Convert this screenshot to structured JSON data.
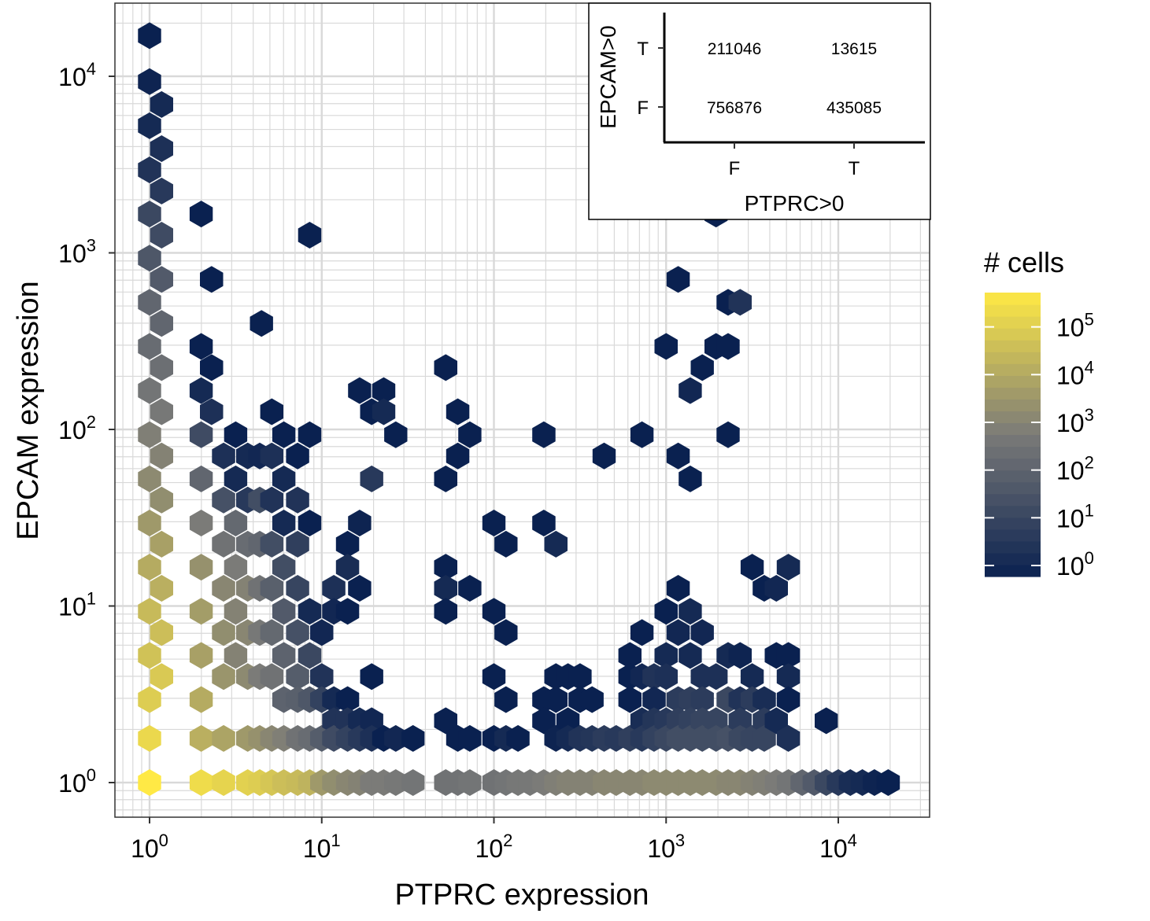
{
  "chart_data": {
    "type": "hexbin",
    "xlabel": "PTPRC expression",
    "ylabel": "EPCAM expression",
    "xscale": "log10",
    "yscale": "log10",
    "xlim": [
      0.8,
      30000
    ],
    "ylim": [
      0.6,
      25000
    ],
    "x_ticks": [
      {
        "base": "10",
        "exp": "0"
      },
      {
        "base": "10",
        "exp": "1"
      },
      {
        "base": "10",
        "exp": "2"
      },
      {
        "base": "10",
        "exp": "3"
      },
      {
        "base": "10",
        "exp": "4"
      }
    ],
    "y_ticks": [
      {
        "base": "10",
        "exp": "0"
      },
      {
        "base": "10",
        "exp": "1"
      },
      {
        "base": "10",
        "exp": "2"
      },
      {
        "base": "10",
        "exp": "3"
      },
      {
        "base": "10",
        "exp": "4"
      }
    ],
    "grid": true,
    "legend": {
      "title": "# cells",
      "scale": "log10",
      "ticks": [
        {
          "base": "10",
          "exp": "0"
        },
        {
          "base": "10",
          "exp": "1"
        },
        {
          "base": "10",
          "exp": "2"
        },
        {
          "base": "10",
          "exp": "3"
        },
        {
          "base": "10",
          "exp": "4"
        },
        {
          "base": "10",
          "exp": "5"
        }
      ],
      "range_log10": [
        0,
        5.95
      ],
      "color_low": "#0a2150",
      "color_mid": "#7a7a78",
      "color_high": "#ffe945",
      "placement": "right"
    },
    "points_log10": [
      [
        0,
        4.23,
        0
      ],
      [
        0,
        3.97,
        0.1
      ],
      [
        0.07,
        3.84,
        0.3
      ],
      [
        0,
        3.72,
        0.3
      ],
      [
        0.07,
        3.59,
        0.5
      ],
      [
        0,
        3.47,
        0.6
      ],
      [
        0.07,
        3.35,
        0.8
      ],
      [
        0,
        3.22,
        1.3
      ],
      [
        0.07,
        3.1,
        1.4
      ],
      [
        0,
        2.97,
        1.8
      ],
      [
        0.07,
        2.85,
        1.9
      ],
      [
        0,
        2.72,
        2.3
      ],
      [
        0.07,
        2.6,
        2.3
      ],
      [
        0,
        2.47,
        2.5
      ],
      [
        0.07,
        2.35,
        2.6
      ],
      [
        0,
        2.22,
        2.8
      ],
      [
        0.07,
        2.1,
        2.9
      ],
      [
        0,
        1.97,
        3.1
      ],
      [
        0.07,
        1.85,
        3.2
      ],
      [
        0,
        1.72,
        3.4
      ],
      [
        0.07,
        1.6,
        3.5
      ],
      [
        0,
        1.47,
        3.8
      ],
      [
        0.07,
        1.35,
        4
      ],
      [
        0,
        1.22,
        4.3
      ],
      [
        0.07,
        1.1,
        4.4
      ],
      [
        0,
        0.97,
        4.7
      ],
      [
        0.07,
        0.85,
        4.8
      ],
      [
        0,
        0.72,
        4.9
      ],
      [
        0.07,
        0.6,
        5.1
      ],
      [
        0,
        0.47,
        5.2
      ],
      [
        0,
        0.25,
        5.5
      ],
      [
        0,
        0,
        5.95
      ],
      [
        0.3,
        3.22,
        0
      ],
      [
        0.36,
        2.85,
        0
      ],
      [
        0.93,
        3.1,
        0
      ],
      [
        0.65,
        2.6,
        0
      ],
      [
        0.3,
        2.47,
        0
      ],
      [
        0.36,
        2.35,
        0
      ],
      [
        0.3,
        2.22,
        0.3
      ],
      [
        0.36,
        2.1,
        0.5
      ],
      [
        0.3,
        1.97,
        1.4
      ],
      [
        0.3,
        1.72,
        2.3
      ],
      [
        0.3,
        1.47,
        3
      ],
      [
        0.3,
        1.22,
        3.6
      ],
      [
        0.3,
        0.97,
        3.9
      ],
      [
        0.3,
        0.72,
        4
      ],
      [
        0.3,
        0.47,
        4.3
      ],
      [
        0.3,
        0.25,
        4.4
      ],
      [
        0.3,
        0,
        5.6
      ],
      [
        0.43,
        1.85,
        0.5
      ],
      [
        0.43,
        1.6,
        1.6
      ],
      [
        0.43,
        1.35,
        2.7
      ],
      [
        0.43,
        1.1,
        3.3
      ],
      [
        0.43,
        0.85,
        3.5
      ],
      [
        0.43,
        0.6,
        3.7
      ],
      [
        0.43,
        0.25,
        4.1
      ],
      [
        0.43,
        0,
        5.4
      ],
      [
        0.5,
        1.97,
        0
      ],
      [
        0.57,
        1.85,
        0.3
      ],
      [
        0.5,
        1.72,
        0.3
      ],
      [
        0.57,
        1.6,
        0.8
      ],
      [
        0.5,
        1.47,
        2.4
      ],
      [
        0.57,
        1.35,
        2.5
      ],
      [
        0.5,
        1.22,
        3
      ],
      [
        0.57,
        1.1,
        3.2
      ],
      [
        0.5,
        0.97,
        3.2
      ],
      [
        0.57,
        0.85,
        3.3
      ],
      [
        0.5,
        0.72,
        3.2
      ],
      [
        0.57,
        0.6,
        3.4
      ],
      [
        0.57,
        0.25,
        3.8
      ],
      [
        0.57,
        0,
        5.3
      ],
      [
        0.64,
        1.85,
        0.2
      ],
      [
        0.64,
        1.6,
        1.5
      ],
      [
        0.64,
        1.35,
        2.3
      ],
      [
        0.64,
        1.1,
        2.7
      ],
      [
        0.64,
        0.85,
        2.9
      ],
      [
        0.64,
        0.6,
        3
      ],
      [
        0.64,
        0.25,
        3.6
      ],
      [
        0.64,
        0
      ],
      [
        0.64,
        0,
        5.2
      ],
      [
        0.71,
        2.1,
        0
      ],
      [
        0.71,
        1.85,
        0.5
      ],
      [
        0.71,
        1.6,
        0.6
      ],
      [
        0.71,
        1.35,
        1.5
      ],
      [
        0.71,
        1.1,
        2.1
      ],
      [
        0.71,
        0.85,
        2.4
      ],
      [
        0.71,
        0.6,
        2.7
      ],
      [
        0.71,
        0.25,
        3.3
      ],
      [
        0.71,
        0,
        5
      ],
      [
        0.78,
        1.97,
        0
      ],
      [
        0.78,
        1.72,
        0.3
      ],
      [
        0.78,
        1.47,
        0.3
      ],
      [
        0.78,
        1.22,
        1.5
      ],
      [
        0.78,
        0.97,
        1.9
      ],
      [
        0.78,
        0.72,
        2.2
      ],
      [
        0.78,
        0.47,
        2.2
      ],
      [
        0.78,
        0.25,
        3.1
      ],
      [
        0.78,
        0,
        4.8
      ],
      [
        0.86,
        1.85,
        0
      ],
      [
        0.86,
        1.6,
        0.6
      ],
      [
        0.86,
        1.35,
        1
      ],
      [
        0.86,
        1.1,
        1.2
      ],
      [
        0.86,
        0.85,
        1.6
      ],
      [
        0.86,
        0.6,
        2
      ],
      [
        0.86,
        0.47,
        2.1
      ],
      [
        0.86,
        0.25,
        2.7
      ],
      [
        0.86,
        0,
        4.7
      ],
      [
        0.93,
        1.97,
        0
      ],
      [
        0.93,
        1.47,
        0
      ],
      [
        0.93,
        0.97,
        0.3
      ],
      [
        0.93,
        0.72,
        1.3
      ],
      [
        0.93,
        0.47,
        1.8
      ],
      [
        0.93,
        0.25,
        2.5
      ],
      [
        0.93,
        0,
        4.5
      ],
      [
        1,
        0.85,
        0.2
      ],
      [
        1,
        0.6,
        0.6
      ],
      [
        1,
        0.47,
        1.1
      ],
      [
        1,
        0.25,
        2
      ],
      [
        1,
        0,
        3.8
      ],
      [
        1.07,
        1.1,
        0.5
      ],
      [
        1.07,
        0.97,
        0.2
      ],
      [
        1.07,
        0.47,
        0.3
      ],
      [
        1.07,
        0.35,
        0.6
      ],
      [
        1.07,
        0.25,
        1.4
      ],
      [
        1.07,
        0,
        3.5
      ],
      [
        1.15,
        1.35,
        0
      ],
      [
        1.15,
        1.22,
        0.4
      ],
      [
        1.15,
        0.97,
        0
      ],
      [
        1.15,
        0.47,
        0
      ],
      [
        1.15,
        0.35,
        0.6
      ],
      [
        1.15,
        0.25,
        1.1
      ],
      [
        1.15,
        0,
        3.3
      ],
      [
        1.22,
        2.22,
        0
      ],
      [
        1.22,
        1.47,
        0.1
      ],
      [
        1.22,
        1.1,
        0
      ],
      [
        1.22,
        0.35,
        0.3
      ],
      [
        1.22,
        0.25,
        0.8
      ],
      [
        1.22,
        0,
        3.2
      ],
      [
        1.29,
        2.1,
        0
      ],
      [
        1.29,
        1.72,
        0.8
      ],
      [
        1.29,
        0.6,
        0
      ],
      [
        1.29,
        0.35,
        0.2
      ],
      [
        1.29,
        0.25,
        0.5
      ],
      [
        1.29,
        0,
        3
      ],
      [
        1.36,
        2.22,
        0
      ],
      [
        1.36,
        2.1,
        0.3
      ],
      [
        1.36,
        0.25,
        0
      ],
      [
        1.36,
        0,
        3
      ],
      [
        1.43,
        1.97,
        0
      ],
      [
        1.43,
        0.25,
        0.2
      ],
      [
        1.43,
        0,
        2.9
      ],
      [
        1.53,
        0.25,
        0
      ],
      [
        1.53,
        0,
        2.8
      ],
      [
        1.72,
        2.35,
        0
      ],
      [
        1.72,
        1.72,
        0
      ],
      [
        1.72,
        1.22,
        0
      ],
      [
        1.72,
        1.1,
        0.3
      ],
      [
        1.72,
        0.97,
        0
      ],
      [
        1.72,
        0.35,
        0
      ],
      [
        1.72,
        0,
        2.7
      ],
      [
        1.79,
        2.1,
        0
      ],
      [
        1.79,
        1.85,
        0
      ],
      [
        1.79,
        0.25,
        0
      ],
      [
        1.79,
        0,
        2.7
      ],
      [
        1.86,
        1.97,
        0
      ],
      [
        1.86,
        1.1,
        0
      ],
      [
        1.86,
        0.25,
        0
      ],
      [
        1.86,
        0,
        2.8
      ],
      [
        2,
        1.47,
        0
      ],
      [
        2,
        0.97,
        0
      ],
      [
        2,
        0.6,
        0
      ],
      [
        2,
        0.25,
        0
      ],
      [
        2,
        0,
        2.7
      ],
      [
        2.07,
        1.35,
        0
      ],
      [
        2.07,
        0.85,
        0
      ],
      [
        2.07,
        0.47,
        0
      ],
      [
        2.07,
        0.25,
        0.3
      ],
      [
        2.07,
        0,
        2.8
      ],
      [
        2.14,
        0.25,
        0
      ],
      [
        2.14,
        0,
        2.9
      ],
      [
        2.21,
        0,
        2.9
      ],
      [
        2.29,
        1.97,
        0
      ],
      [
        2.29,
        1.47,
        0
      ],
      [
        2.29,
        0.47,
        0
      ],
      [
        2.29,
        0.35,
        0
      ],
      [
        2.29,
        0,
        3
      ],
      [
        2.36,
        1.35,
        0.3
      ],
      [
        2.36,
        0.6,
        0
      ],
      [
        2.36,
        0.47,
        0
      ],
      [
        2.36,
        0.25,
        0.1
      ],
      [
        2.36,
        0,
        3.1
      ],
      [
        2.43,
        0.6,
        0
      ],
      [
        2.43,
        0.35,
        0
      ],
      [
        2.43,
        0.25,
        0.3
      ],
      [
        2.43,
        0,
        3.2
      ],
      [
        2.5,
        0.6,
        0
      ],
      [
        2.5,
        0.47,
        0
      ],
      [
        2.5,
        0.25,
        0.6
      ],
      [
        2.5,
        0,
        3.2
      ],
      [
        2.57,
        0.47,
        0
      ],
      [
        2.57,
        0.25,
        0.7
      ],
      [
        2.57,
        0,
        3.2
      ],
      [
        2.64,
        1.85,
        0
      ],
      [
        2.64,
        0.25,
        0.9
      ],
      [
        2.64,
        0,
        3.3
      ],
      [
        2.71,
        0.25,
        0.8
      ],
      [
        2.71,
        0,
        3.3
      ],
      [
        2.79,
        0.72,
        0
      ],
      [
        2.79,
        0.6,
        0
      ],
      [
        2.79,
        0.47,
        0
      ],
      [
        2.79,
        0.25,
        1
      ],
      [
        2.79,
        0,
        3.3
      ],
      [
        2.86,
        1.97,
        0
      ],
      [
        2.86,
        0.85,
        0
      ],
      [
        2.86,
        0.6,
        0.2
      ],
      [
        2.86,
        0.35,
        0.4
      ],
      [
        2.86,
        0.25,
        0.8
      ],
      [
        2.86,
        0,
        3.3
      ],
      [
        2.93,
        0.6,
        0.6
      ],
      [
        2.93,
        0.47,
        0.2
      ],
      [
        2.93,
        0.35,
        0.7
      ],
      [
        2.93,
        0.25,
        1.1
      ],
      [
        2.93,
        0,
        3.4
      ],
      [
        3,
        2.47,
        0
      ],
      [
        3,
        0.97,
        0
      ],
      [
        3,
        0.72,
        0.3
      ],
      [
        3,
        0.6,
        0.5
      ],
      [
        3,
        0.35,
        0.8
      ],
      [
        3,
        0.25,
        1.3
      ],
      [
        3,
        0,
        3.4
      ],
      [
        3.07,
        2.85,
        0
      ],
      [
        3.07,
        1.85,
        0
      ],
      [
        3.07,
        1.1,
        0
      ],
      [
        3.07,
        0.85,
        0.2
      ],
      [
        3.07,
        0.47,
        0.9
      ],
      [
        3.07,
        0.35,
        1
      ],
      [
        3.07,
        0.25,
        1.5
      ],
      [
        3.07,
        0,
        3.4
      ],
      [
        3.14,
        2.22,
        0.2
      ],
      [
        3.14,
        1.72,
        0
      ],
      [
        3.14,
        0.97,
        0.3
      ],
      [
        3.14,
        0.72,
        0.3
      ],
      [
        3.14,
        0.47,
        1
      ],
      [
        3.14,
        0.35,
        1.1
      ],
      [
        3.14,
        0.25,
        1.5
      ],
      [
        3.14,
        0,
        3.4
      ],
      [
        3.21,
        2.35,
        0
      ],
      [
        3.21,
        0.85,
        0.2
      ],
      [
        3.21,
        0.6,
        0.5
      ],
      [
        3.21,
        0.47,
        0.9
      ],
      [
        3.21,
        0.35,
        1.2
      ],
      [
        3.21,
        0.25,
        1.5
      ],
      [
        3.21,
        0,
        3.4
      ],
      [
        3.29,
        3.22,
        0
      ],
      [
        3.29,
        2.47,
        0
      ],
      [
        3.29,
        0.6,
        0.5
      ],
      [
        3.29,
        0.35,
        1.2
      ],
      [
        3.29,
        0.25,
        1.5
      ],
      [
        3.29,
        0,
        3.4
      ],
      [
        3.36,
        2.72,
        0
      ],
      [
        3.36,
        2.47,
        0
      ],
      [
        3.36,
        1.97,
        0
      ],
      [
        3.36,
        0.72,
        0.3
      ],
      [
        3.36,
        0.47,
        1.3
      ],
      [
        3.36,
        0.25,
        1.6
      ],
      [
        3.36,
        0,
        3.3
      ],
      [
        3.43,
        2.72,
        0.6
      ],
      [
        3.43,
        0.72,
        0.1
      ],
      [
        3.43,
        0.47,
        0.6
      ],
      [
        3.43,
        0.35,
        0.9
      ],
      [
        3.43,
        0.25,
        1.3
      ],
      [
        3.43,
        0,
        3.3
      ],
      [
        3.5,
        1.22,
        0
      ],
      [
        3.5,
        0.6,
        0.3
      ],
      [
        3.5,
        0.47,
        0.9
      ],
      [
        3.5,
        0.25,
        1.2
      ],
      [
        3.5,
        0,
        3.2
      ],
      [
        3.57,
        1.1,
        0
      ],
      [
        3.57,
        0.47,
        0.4
      ],
      [
        3.57,
        0.35,
        0.9
      ],
      [
        3.57,
        0.25,
        1.2
      ],
      [
        3.57,
        0,
        3.1
      ],
      [
        3.64,
        1.1,
        0.2
      ],
      [
        3.64,
        0.72,
        0
      ],
      [
        3.64,
        0.35,
        0.3
      ],
      [
        3.64,
        0,
        3
      ],
      [
        3.71,
        1.22,
        0.3
      ],
      [
        3.71,
        0.72,
        0
      ],
      [
        3.71,
        0.6,
        0.3
      ],
      [
        3.71,
        0.47,
        0
      ],
      [
        3.71,
        0.25,
        0.5
      ],
      [
        3.71,
        0,
        2.8
      ],
      [
        3.79,
        0,
        2.3
      ],
      [
        3.86,
        0,
        1.9
      ],
      [
        3.86,
        0,
        1.9
      ],
      [
        3.93,
        0.35,
        0
      ],
      [
        3.93,
        0,
        1.3
      ],
      [
        4,
        0,
        0.8
      ],
      [
        4.07,
        0,
        0.4
      ],
      [
        4.14,
        0,
        0.3
      ],
      [
        4.21,
        0,
        0.1
      ],
      [
        4.29,
        0,
        0
      ]
    ]
  },
  "inset": {
    "xlabel": "PTPRC>0",
    "ylabel": "EPCAM>0",
    "x_categories": [
      "F",
      "T"
    ],
    "y_categories": [
      "T",
      "F"
    ],
    "cells": [
      {
        "epcam": "T",
        "ptprc": "F",
        "count": "211046"
      },
      {
        "epcam": "T",
        "ptprc": "T",
        "count": "13615"
      },
      {
        "epcam": "F",
        "ptprc": "F",
        "count": "756876"
      },
      {
        "epcam": "F",
        "ptprc": "T",
        "count": "435085"
      }
    ]
  }
}
